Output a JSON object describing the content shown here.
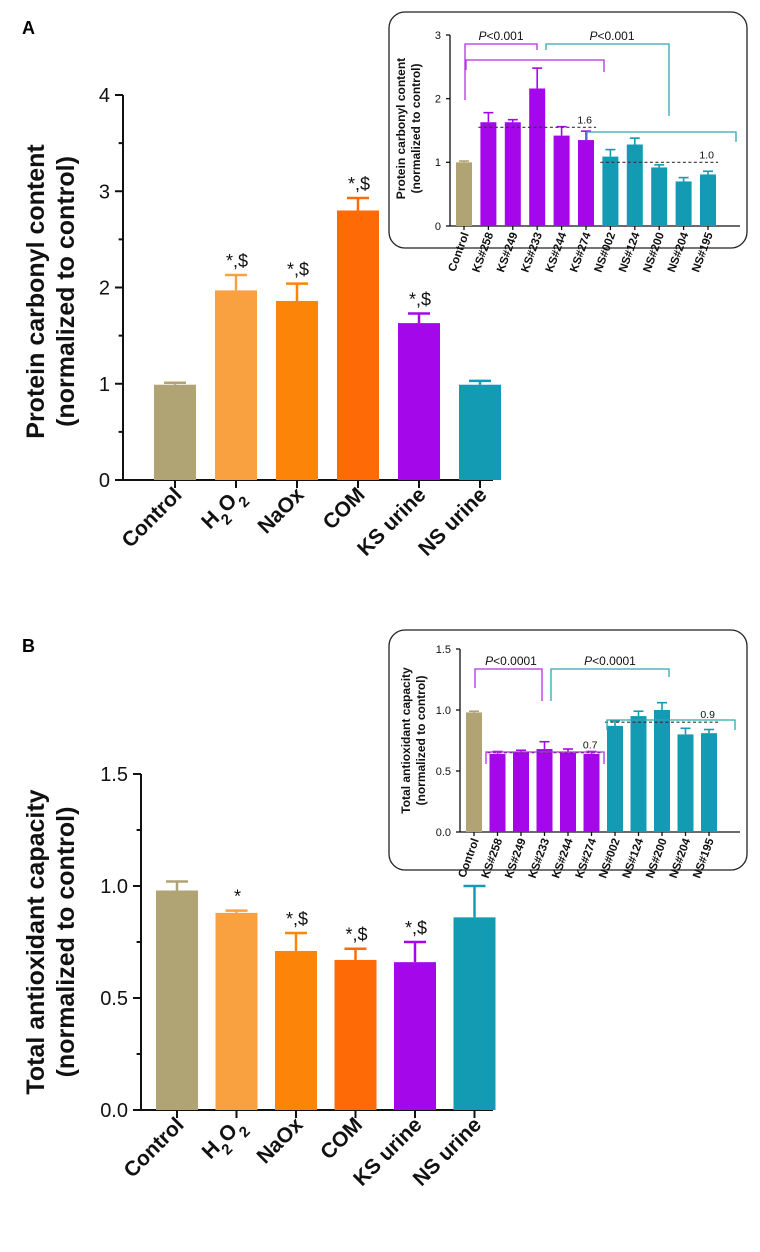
{
  "colors": {
    "control": "#B0A474",
    "h2o2": "#F9A141",
    "naox": "#FB8409",
    "com": "#FE6A05",
    "ks": "#A408EA",
    "ns": "#129BB2",
    "ks_bracket": "#B42FE4",
    "ns_bracket": "#2BA7B4",
    "axis": "#111111"
  },
  "chart_data": [
    {
      "id": "A",
      "panel_label": "A",
      "type": "bar",
      "ylabel_line1": "Protein carbonyl content",
      "ylabel_line2": "(normalized to control)",
      "ylim": [
        0,
        4
      ],
      "yticks": [
        0,
        1,
        2,
        3,
        4
      ],
      "tick_labels": [
        "0",
        "1",
        "2",
        "3",
        "4"
      ],
      "categories": [
        "Control",
        "H2O2",
        "NaOx",
        "COM",
        "KS urine",
        "NS urine"
      ],
      "values": [
        0.99,
        1.97,
        1.86,
        2.8,
        1.63,
        0.99
      ],
      "errors": [
        0.02,
        0.16,
        0.18,
        0.13,
        0.1,
        0.04
      ],
      "significance": [
        "",
        "*,$",
        "*,$",
        "*,$",
        "*,$",
        ""
      ],
      "bar_colors": [
        "control",
        "h2o2",
        "naox",
        "com",
        "ks",
        "ns"
      ]
    },
    {
      "id": "A_inset",
      "type": "bar",
      "ylabel_line1": "Protein carbonyl content",
      "ylabel_line2": "(normalized to control)",
      "ylim": [
        0,
        3
      ],
      "yticks": [
        0,
        1,
        2,
        3
      ],
      "tick_labels": [
        "0",
        "1",
        "2",
        "3"
      ],
      "categories": [
        "Control",
        "KS#258",
        "KS#249",
        "KS#233",
        "KS#244",
        "KS#274",
        "NS#002",
        "NS#124",
        "NS#200",
        "NS#204",
        "NS#195"
      ],
      "values": [
        1.0,
        1.63,
        1.63,
        2.16,
        1.42,
        1.35,
        1.09,
        1.28,
        0.92,
        0.7,
        0.81
      ],
      "errors": [
        0.02,
        0.15,
        0.04,
        0.32,
        0.14,
        0.14,
        0.11,
        0.1,
        0.04,
        0.06,
        0.05
      ],
      "bar_colors": [
        "control",
        "ks",
        "ks",
        "ks",
        "ks",
        "ks",
        "ns",
        "ns",
        "ns",
        "ns",
        "ns"
      ],
      "ref_lines": [
        {
          "value": 1.55,
          "label": "1.6",
          "from": 1,
          "to": 5
        },
        {
          "value": 1.0,
          "label": "1.0",
          "from": 6,
          "to": 10
        }
      ],
      "p_values": [
        "<0.001",
        "<0.001"
      ]
    },
    {
      "id": "B",
      "panel_label": "B",
      "type": "bar",
      "ylabel_line1": "Total antioxidant capacity",
      "ylabel_line2": "(normalized to control)",
      "ylim": [
        0,
        1.5
      ],
      "yticks": [
        0,
        0.5,
        1.0,
        1.5
      ],
      "tick_labels": [
        "0.0",
        "0.5",
        "1.0",
        "1.5"
      ],
      "categories": [
        "Control",
        "H2O2",
        "NaOx",
        "COM",
        "KS urine",
        "NS urine"
      ],
      "values": [
        0.98,
        0.88,
        0.71,
        0.67,
        0.66,
        0.86
      ],
      "errors": [
        0.04,
        0.01,
        0.08,
        0.05,
        0.09,
        0.14
      ],
      "significance": [
        "",
        "*",
        "*,$",
        "*,$",
        "*,$",
        ""
      ],
      "bar_colors": [
        "control",
        "h2o2",
        "naox",
        "com",
        "ks",
        "ns"
      ]
    },
    {
      "id": "B_inset",
      "type": "bar",
      "ylabel_line1": "Total antioxidant capacity",
      "ylabel_line2": "(normalized to control)",
      "ylim": [
        0,
        1.5
      ],
      "yticks": [
        0,
        0.5,
        1.0,
        1.5
      ],
      "tick_labels": [
        "0.0",
        "0.5",
        "1.0",
        "1.5"
      ],
      "categories": [
        "Control",
        "KS#258",
        "KS#249",
        "KS#233",
        "KS#244",
        "KS#274",
        "NS#002",
        "NS#124",
        "NS#200",
        "NS#204",
        "NS#195"
      ],
      "values": [
        0.98,
        0.64,
        0.66,
        0.68,
        0.65,
        0.64,
        0.87,
        0.95,
        1.0,
        0.8,
        0.81
      ],
      "errors": [
        0.01,
        0.02,
        0.01,
        0.06,
        0.03,
        0.02,
        0.04,
        0.04,
        0.06,
        0.05,
        0.03
      ],
      "bar_colors": [
        "control",
        "ks",
        "ks",
        "ks",
        "ks",
        "ks",
        "ns",
        "ns",
        "ns",
        "ns",
        "ns"
      ],
      "ref_lines": [
        {
          "value": 0.65,
          "label": "0.7",
          "from": 1,
          "to": 5
        },
        {
          "value": 0.9,
          "label": "0.9",
          "from": 6,
          "to": 10
        }
      ],
      "p_values": [
        "<0.0001",
        "<0.0001"
      ]
    }
  ]
}
